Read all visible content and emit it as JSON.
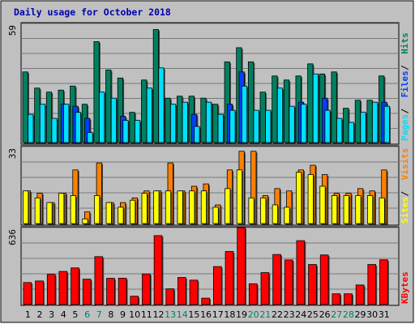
{
  "chart_data": [
    {
      "type": "bar",
      "title": "Daily usage for October 2018",
      "ymax_label": "59",
      "categories": [
        "1",
        "2",
        "3",
        "4",
        "5",
        "6",
        "7",
        "8",
        "9",
        "10",
        "11",
        "12",
        "13",
        "14",
        "15",
        "16",
        "17",
        "18",
        "19",
        "20",
        "21",
        "22",
        "23",
        "24",
        "25",
        "26",
        "27",
        "28",
        "29",
        "30",
        "31"
      ],
      "weekend_days": [
        "6",
        "7",
        "13",
        "14",
        "20",
        "21",
        "27",
        "28"
      ],
      "ylim": [
        0,
        59
      ],
      "series": [
        {
          "name": "Hits",
          "color": "#008060",
          "values": [
            35,
            27,
            25,
            26,
            28,
            19,
            50,
            36,
            32,
            15,
            31,
            56,
            22,
            23,
            23,
            22,
            19,
            40,
            47,
            40,
            25,
            33,
            31,
            33,
            39,
            34,
            35,
            17,
            21,
            21,
            33
          ]
        },
        {
          "name": "Files",
          "color": "#0040ff",
          "values": [
            0,
            0,
            0,
            19,
            18,
            12,
            0,
            0,
            13,
            0,
            0,
            0,
            0,
            0,
            14,
            0,
            0,
            19,
            35,
            0,
            0,
            0,
            0,
            20,
            0,
            22,
            0,
            0,
            0,
            0,
            20
          ]
        },
        {
          "name": "Pages",
          "color": "#00e0ff",
          "values": [
            14,
            19,
            12,
            19,
            15,
            5,
            25,
            22,
            11,
            11,
            27,
            37,
            19,
            20,
            8,
            20,
            14,
            16,
            28,
            16,
            16,
            27,
            18,
            19,
            34,
            16,
            12,
            10,
            15,
            20,
            18
          ]
        }
      ],
      "axis_label": "Pages / Files / Hits"
    },
    {
      "type": "bar",
      "ymax_label": "33",
      "categories": [
        "1",
        "2",
        "3",
        "4",
        "5",
        "6",
        "7",
        "8",
        "9",
        "10",
        "11",
        "12",
        "13",
        "14",
        "15",
        "16",
        "17",
        "18",
        "19",
        "20",
        "21",
        "22",
        "23",
        "24",
        "25",
        "26",
        "27",
        "28",
        "29",
        "30",
        "31"
      ],
      "ylim": [
        0,
        33
      ],
      "series": [
        {
          "name": "Visits",
          "color": "#ff8000",
          "values": [
            14,
            13,
            9,
            13,
            23,
            5,
            26,
            9,
            9,
            11,
            14,
            14,
            26,
            14,
            16,
            17,
            8,
            23,
            31,
            31,
            12,
            15,
            14,
            23,
            25,
            21,
            13,
            13,
            15,
            14,
            23
          ]
        },
        {
          "name": "Sites",
          "color": "#ffff00",
          "values": [
            14,
            11,
            9,
            13,
            12,
            2,
            12,
            9,
            7,
            10,
            13,
            14,
            14,
            14,
            14,
            14,
            7,
            15,
            23,
            11,
            11,
            8,
            7,
            22,
            21,
            16,
            12,
            12,
            12,
            12,
            11
          ]
        }
      ],
      "axis_label": "Sites / Visits"
    },
    {
      "type": "bar",
      "ymax_label": "636",
      "categories": [
        "1",
        "2",
        "3",
        "4",
        "5",
        "6",
        "7",
        "8",
        "9",
        "10",
        "11",
        "12",
        "13",
        "14",
        "15",
        "16",
        "17",
        "18",
        "19",
        "20",
        "21",
        "22",
        "23",
        "24",
        "25",
        "26",
        "27",
        "28",
        "29",
        "30",
        "31"
      ],
      "ylim": [
        0,
        636
      ],
      "series": [
        {
          "name": "KBytes",
          "color": "#ff0000",
          "values": [
            182,
            195,
            250,
            274,
            303,
            210,
            396,
            217,
            218,
            69,
            253,
            570,
            130,
            224,
            202,
            53,
            314,
            439,
            636,
            172,
            264,
            414,
            369,
            528,
            331,
            410,
            89,
            89,
            162,
            331,
            370
          ]
        }
      ],
      "axis_label": "KBytes"
    }
  ]
}
